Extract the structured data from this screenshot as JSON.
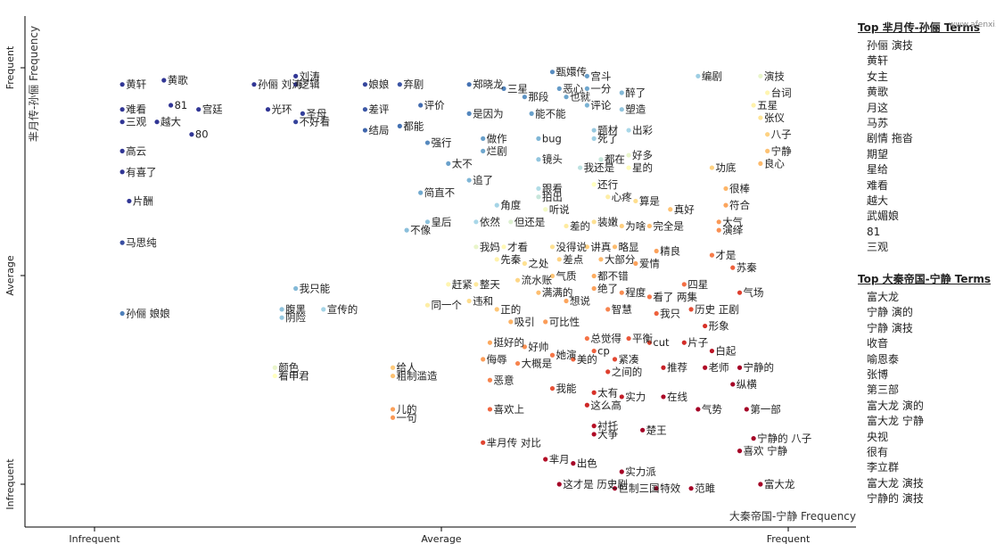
{
  "chart_data": {
    "type": "scatter",
    "xlabel": "大秦帝国-宁静 Frequency",
    "ylabel": "芈月传-孙俪 Frequency",
    "x_ticks": [
      "Infrequent",
      "Average",
      "Frequent"
    ],
    "y_ticks": [
      "Frequent",
      "Average",
      "Infrequent"
    ],
    "labeled_terms": [
      {
        "t": "黄轩",
        "x": 0.04,
        "y": 0.96
      },
      {
        "t": "黄歌",
        "x": 0.1,
        "y": 0.97
      },
      {
        "t": "81",
        "x": 0.11,
        "y": 0.91
      },
      {
        "t": "难看",
        "x": 0.04,
        "y": 0.9
      },
      {
        "t": "三观",
        "x": 0.04,
        "y": 0.87
      },
      {
        "t": "越大",
        "x": 0.09,
        "y": 0.87
      },
      {
        "t": "宫廷",
        "x": 0.15,
        "y": 0.9
      },
      {
        "t": "80",
        "x": 0.14,
        "y": 0.84
      },
      {
        "t": "高云",
        "x": 0.04,
        "y": 0.8
      },
      {
        "t": "孙俪 刘涛",
        "x": 0.23,
        "y": 0.96
      },
      {
        "t": "刘涛",
        "x": 0.29,
        "y": 0.98
      },
      {
        "t": "逻辑",
        "x": 0.29,
        "y": 0.96
      },
      {
        "t": "光环",
        "x": 0.25,
        "y": 0.9
      },
      {
        "t": "圣母",
        "x": 0.3,
        "y": 0.89
      },
      {
        "t": "不好看",
        "x": 0.29,
        "y": 0.87
      },
      {
        "t": "有喜了",
        "x": 0.04,
        "y": 0.75
      },
      {
        "t": "片酬",
        "x": 0.05,
        "y": 0.68
      },
      {
        "t": "马思纯",
        "x": 0.04,
        "y": 0.58
      },
      {
        "t": "孙俪 娘娘",
        "x": 0.04,
        "y": 0.41
      },
      {
        "t": "娘娘",
        "x": 0.39,
        "y": 0.96
      },
      {
        "t": "弃剧",
        "x": 0.44,
        "y": 0.96
      },
      {
        "t": "差评",
        "x": 0.39,
        "y": 0.9
      },
      {
        "t": "评价",
        "x": 0.47,
        "y": 0.91
      },
      {
        "t": "都能",
        "x": 0.44,
        "y": 0.86
      },
      {
        "t": "结局",
        "x": 0.39,
        "y": 0.85
      },
      {
        "t": "强行",
        "x": 0.48,
        "y": 0.82
      },
      {
        "t": "郑晓龙",
        "x": 0.54,
        "y": 0.96
      },
      {
        "t": "是因为",
        "x": 0.54,
        "y": 0.89
      },
      {
        "t": "做作",
        "x": 0.56,
        "y": 0.83
      },
      {
        "t": "烂剧",
        "x": 0.56,
        "y": 0.8
      },
      {
        "t": "太不",
        "x": 0.51,
        "y": 0.77
      },
      {
        "t": "追了",
        "x": 0.54,
        "y": 0.73
      },
      {
        "t": "简直不",
        "x": 0.47,
        "y": 0.7
      },
      {
        "t": "皇后",
        "x": 0.48,
        "y": 0.63
      },
      {
        "t": "不像",
        "x": 0.45,
        "y": 0.61
      },
      {
        "t": "我只能",
        "x": 0.29,
        "y": 0.47
      },
      {
        "t": "腹黑",
        "x": 0.27,
        "y": 0.42
      },
      {
        "t": "阴险",
        "x": 0.27,
        "y": 0.4
      },
      {
        "t": "宣传的",
        "x": 0.33,
        "y": 0.42
      },
      {
        "t": "同一个",
        "x": 0.48,
        "y": 0.43
      },
      {
        "t": "赶紧",
        "x": 0.51,
        "y": 0.48
      },
      {
        "t": "颜色",
        "x": 0.26,
        "y": 0.28
      },
      {
        "t": "看申君",
        "x": 0.26,
        "y": 0.26
      },
      {
        "t": "给人",
        "x": 0.43,
        "y": 0.28
      },
      {
        "t": "粗制滥造",
        "x": 0.43,
        "y": 0.26
      },
      {
        "t": "儿的",
        "x": 0.43,
        "y": 0.18
      },
      {
        "t": "一句",
        "x": 0.43,
        "y": 0.16
      },
      {
        "t": "喜欢上",
        "x": 0.57,
        "y": 0.18
      },
      {
        "t": "芈月传 对比",
        "x": 0.56,
        "y": 0.1
      },
      {
        "t": "三星",
        "x": 0.59,
        "y": 0.95
      },
      {
        "t": "甄嬛传",
        "x": 0.66,
        "y": 0.99
      },
      {
        "t": "恶心",
        "x": 0.67,
        "y": 0.95
      },
      {
        "t": "那段",
        "x": 0.62,
        "y": 0.93
      },
      {
        "t": "也就",
        "x": 0.68,
        "y": 0.93
      },
      {
        "t": "能不能",
        "x": 0.63,
        "y": 0.89
      },
      {
        "t": "宫斗",
        "x": 0.71,
        "y": 0.98
      },
      {
        "t": "一分",
        "x": 0.71,
        "y": 0.95
      },
      {
        "t": "醉了",
        "x": 0.76,
        "y": 0.94
      },
      {
        "t": "评论",
        "x": 0.71,
        "y": 0.91
      },
      {
        "t": "塑造",
        "x": 0.76,
        "y": 0.9
      },
      {
        "t": "题材",
        "x": 0.72,
        "y": 0.85
      },
      {
        "t": "死了",
        "x": 0.72,
        "y": 0.83
      },
      {
        "t": "出彩",
        "x": 0.77,
        "y": 0.85
      },
      {
        "t": "bug",
        "x": 0.64,
        "y": 0.83
      },
      {
        "t": "镜头",
        "x": 0.64,
        "y": 0.78
      },
      {
        "t": "都在",
        "x": 0.73,
        "y": 0.78
      },
      {
        "t": "好多",
        "x": 0.77,
        "y": 0.79
      },
      {
        "t": "星的",
        "x": 0.77,
        "y": 0.76
      },
      {
        "t": "我还是",
        "x": 0.7,
        "y": 0.76
      },
      {
        "t": "跟看",
        "x": 0.64,
        "y": 0.71
      },
      {
        "t": "拍出",
        "x": 0.64,
        "y": 0.69
      },
      {
        "t": "还行",
        "x": 0.72,
        "y": 0.72
      },
      {
        "t": "心疼",
        "x": 0.74,
        "y": 0.69
      },
      {
        "t": "算是",
        "x": 0.78,
        "y": 0.68
      },
      {
        "t": "角度",
        "x": 0.58,
        "y": 0.67
      },
      {
        "t": "听说",
        "x": 0.65,
        "y": 0.66
      },
      {
        "t": "依然",
        "x": 0.55,
        "y": 0.63
      },
      {
        "t": "但还是",
        "x": 0.6,
        "y": 0.63
      },
      {
        "t": "装嫩",
        "x": 0.72,
        "y": 0.63
      },
      {
        "t": "为啥",
        "x": 0.76,
        "y": 0.62
      },
      {
        "t": "完全是",
        "x": 0.8,
        "y": 0.62
      },
      {
        "t": "真好",
        "x": 0.83,
        "y": 0.66
      },
      {
        "t": "差的",
        "x": 0.68,
        "y": 0.62
      },
      {
        "t": "我妈",
        "x": 0.55,
        "y": 0.57
      },
      {
        "t": "才看",
        "x": 0.59,
        "y": 0.57
      },
      {
        "t": "没得说",
        "x": 0.66,
        "y": 0.57
      },
      {
        "t": "讲真",
        "x": 0.71,
        "y": 0.57
      },
      {
        "t": "略显",
        "x": 0.75,
        "y": 0.57
      },
      {
        "t": "先秦",
        "x": 0.58,
        "y": 0.54
      },
      {
        "t": "之处",
        "x": 0.62,
        "y": 0.53
      },
      {
        "t": "差点",
        "x": 0.67,
        "y": 0.54
      },
      {
        "t": "大部分",
        "x": 0.73,
        "y": 0.54
      },
      {
        "t": "爱情",
        "x": 0.78,
        "y": 0.53
      },
      {
        "t": "精良",
        "x": 0.81,
        "y": 0.56
      },
      {
        "t": "流水账",
        "x": 0.61,
        "y": 0.49
      },
      {
        "t": "气质",
        "x": 0.66,
        "y": 0.5
      },
      {
        "t": "都不错",
        "x": 0.72,
        "y": 0.5
      },
      {
        "t": "整天",
        "x": 0.55,
        "y": 0.48
      },
      {
        "t": "满满的",
        "x": 0.64,
        "y": 0.46
      },
      {
        "t": "绝了",
        "x": 0.72,
        "y": 0.47
      },
      {
        "t": "程度",
        "x": 0.76,
        "y": 0.46
      },
      {
        "t": "违和",
        "x": 0.54,
        "y": 0.44
      },
      {
        "t": "正的",
        "x": 0.58,
        "y": 0.42
      },
      {
        "t": "想说",
        "x": 0.68,
        "y": 0.44
      },
      {
        "t": "智慧",
        "x": 0.74,
        "y": 0.42
      },
      {
        "t": "看了 两集",
        "x": 0.8,
        "y": 0.45
      },
      {
        "t": "四星",
        "x": 0.85,
        "y": 0.48
      },
      {
        "t": "吸引",
        "x": 0.6,
        "y": 0.39
      },
      {
        "t": "可比性",
        "x": 0.65,
        "y": 0.39
      },
      {
        "t": "我只",
        "x": 0.81,
        "y": 0.41
      },
      {
        "t": "历史 正剧",
        "x": 0.86,
        "y": 0.42
      },
      {
        "t": "形象",
        "x": 0.88,
        "y": 0.38
      },
      {
        "t": "挺好的",
        "x": 0.57,
        "y": 0.34
      },
      {
        "t": "好帅",
        "x": 0.62,
        "y": 0.33
      },
      {
        "t": "总觉得",
        "x": 0.71,
        "y": 0.35
      },
      {
        "t": "平衡",
        "x": 0.77,
        "y": 0.35
      },
      {
        "t": "cut",
        "x": 0.8,
        "y": 0.34
      },
      {
        "t": "片子",
        "x": 0.85,
        "y": 0.34
      },
      {
        "t": "白起",
        "x": 0.89,
        "y": 0.32
      },
      {
        "t": "侮辱",
        "x": 0.56,
        "y": 0.3
      },
      {
        "t": "大概是",
        "x": 0.61,
        "y": 0.29
      },
      {
        "t": "她演",
        "x": 0.66,
        "y": 0.31
      },
      {
        "t": "美的",
        "x": 0.69,
        "y": 0.3
      },
      {
        "t": "cp",
        "x": 0.72,
        "y": 0.32
      },
      {
        "t": "紧凑",
        "x": 0.75,
        "y": 0.3
      },
      {
        "t": "之间的",
        "x": 0.74,
        "y": 0.27
      },
      {
        "t": "推荐",
        "x": 0.82,
        "y": 0.28
      },
      {
        "t": "老师",
        "x": 0.88,
        "y": 0.28
      },
      {
        "t": "宁静的",
        "x": 0.93,
        "y": 0.28
      },
      {
        "t": "恶意",
        "x": 0.57,
        "y": 0.25
      },
      {
        "t": "我能",
        "x": 0.66,
        "y": 0.23
      },
      {
        "t": "太有",
        "x": 0.72,
        "y": 0.22
      },
      {
        "t": "这么高",
        "x": 0.71,
        "y": 0.19
      },
      {
        "t": "实力",
        "x": 0.76,
        "y": 0.21
      },
      {
        "t": "在线",
        "x": 0.82,
        "y": 0.21
      },
      {
        "t": "纵横",
        "x": 0.92,
        "y": 0.24
      },
      {
        "t": "气势",
        "x": 0.87,
        "y": 0.18
      },
      {
        "t": "第一部",
        "x": 0.94,
        "y": 0.18
      },
      {
        "t": "衬托",
        "x": 0.72,
        "y": 0.14
      },
      {
        "t": "大争",
        "x": 0.72,
        "y": 0.12
      },
      {
        "t": "楚王",
        "x": 0.79,
        "y": 0.13
      },
      {
        "t": "宁静的 八子",
        "x": 0.95,
        "y": 0.11
      },
      {
        "t": "喜欢 宁静",
        "x": 0.93,
        "y": 0.08
      },
      {
        "t": "芈月",
        "x": 0.65,
        "y": 0.06
      },
      {
        "t": "出色",
        "x": 0.69,
        "y": 0.05
      },
      {
        "t": "实力派",
        "x": 0.76,
        "y": 0.03
      },
      {
        "t": "这才是 历史剧",
        "x": 0.67,
        "y": 0.0
      },
      {
        "t": "巨制三国",
        "x": 0.75,
        "y": -0.01
      },
      {
        "t": "特效",
        "x": 0.81,
        "y": -0.01
      },
      {
        "t": "范雎",
        "x": 0.86,
        "y": -0.01
      },
      {
        "t": "富大龙",
        "x": 0.96,
        "y": 0.0
      },
      {
        "t": "编剧",
        "x": 0.87,
        "y": 0.98
      },
      {
        "t": "演技",
        "x": 0.96,
        "y": 0.98
      },
      {
        "t": "台词",
        "x": 0.97,
        "y": 0.94
      },
      {
        "t": "五星",
        "x": 0.95,
        "y": 0.91
      },
      {
        "t": "张仪",
        "x": 0.96,
        "y": 0.88
      },
      {
        "t": "八子",
        "x": 0.97,
        "y": 0.84
      },
      {
        "t": "宁静",
        "x": 0.97,
        "y": 0.8
      },
      {
        "t": "良心",
        "x": 0.96,
        "y": 0.77
      },
      {
        "t": "功底",
        "x": 0.89,
        "y": 0.76
      },
      {
        "t": "很棒",
        "x": 0.91,
        "y": 0.71
      },
      {
        "t": "符合",
        "x": 0.91,
        "y": 0.67
      },
      {
        "t": "大气",
        "x": 0.9,
        "y": 0.63
      },
      {
        "t": "演绎",
        "x": 0.9,
        "y": 0.61
      },
      {
        "t": "才是",
        "x": 0.89,
        "y": 0.55
      },
      {
        "t": "苏秦",
        "x": 0.92,
        "y": 0.52
      },
      {
        "t": "气场",
        "x": 0.93,
        "y": 0.46
      }
    ]
  },
  "legend_top_a": {
    "title": "Top 芈月传-孙俪 Terms",
    "terms": [
      "孙俪 演技",
      "黄轩",
      "女主",
      "黄歌",
      "月这",
      "马苏",
      "剧情 拖沓",
      "期望",
      "星给",
      "难看",
      "越大",
      "武媚娘",
      "81",
      "三观"
    ]
  },
  "legend_top_b": {
    "title": "Top 大秦帝国-宁静 Terms",
    "terms": [
      "富大龙",
      "宁静 演的",
      "宁静 演技",
      "收音",
      "喻恩泰",
      "张博",
      "第三部",
      "富大龙 演的",
      "富大龙 宁静",
      "央视",
      "很有",
      "李立群",
      "富大龙 演技",
      "宁静的 演技"
    ]
  },
  "watermark": "www.afenxi.com"
}
